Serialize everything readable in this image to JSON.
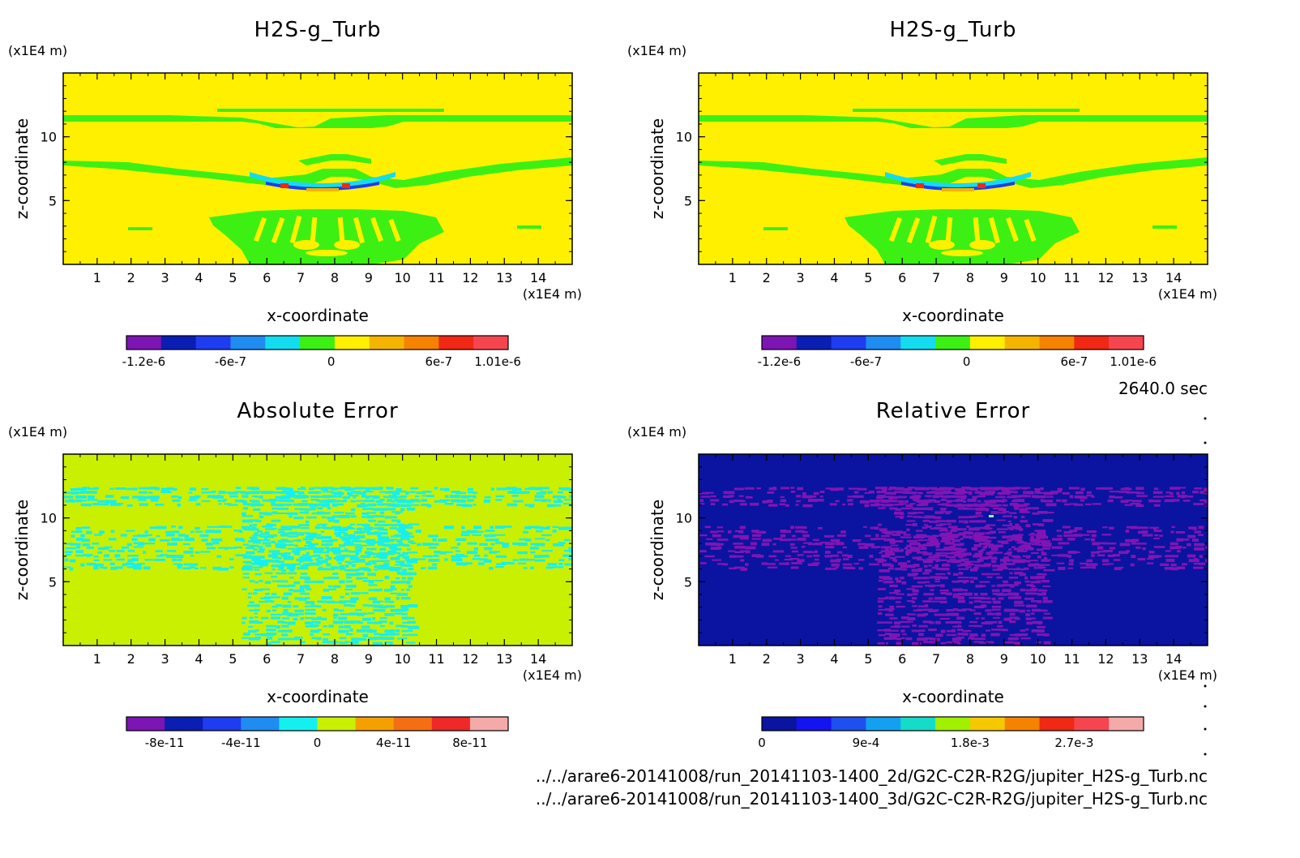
{
  "time_label": "2640.0 sec",
  "file_paths": [
    "../../arare6-20141008/run_20141103-1400_2d/G2C-C2R-R2G/jupiter_H2S-g_Turb.nc",
    "../../arare6-20141008/run_20141103-1400_3d/G2C-C2R-R2G/jupiter_H2S-g_Turb.nc"
  ],
  "chart_data": [
    {
      "type": "heatmap",
      "title": "H2S-g_Turb",
      "xlabel": "x-coordinate",
      "ylabel": "z-coordinate",
      "x_unit": "(x1E4 m)",
      "y_unit": "(x1E4 m)",
      "xlim": [
        0,
        15
      ],
      "ylim": [
        0,
        15
      ],
      "x_ticks": [
        "1",
        "2",
        "3",
        "4",
        "5",
        "6",
        "7",
        "8",
        "9",
        "10",
        "11",
        "12",
        "13",
        "14"
      ],
      "y_ticks": [
        "10",
        "5"
      ],
      "background_level": "0 to 3e-7",
      "colorbar": {
        "colors": [
          "#7d14b4",
          "#0a1eb4",
          "#1e3cf0",
          "#1e8cf0",
          "#14dcf0",
          "#3cf014",
          "#fff000",
          "#f5b400",
          "#f58200",
          "#f02814",
          "#f54650"
        ],
        "labels": [
          "-1.2e-6",
          "-6e-7",
          "0",
          "6e-7",
          "1.01e-6"
        ]
      }
    },
    {
      "type": "heatmap",
      "title": "H2S-g_Turb",
      "xlabel": "x-coordinate",
      "ylabel": "z-coordinate",
      "x_unit": "(x1E4 m)",
      "y_unit": "(x1E4 m)",
      "xlim": [
        0,
        15
      ],
      "ylim": [
        0,
        15
      ],
      "x_ticks": [
        "1",
        "2",
        "3",
        "4",
        "5",
        "6",
        "7",
        "8",
        "9",
        "10",
        "11",
        "12",
        "13",
        "14"
      ],
      "y_ticks": [
        "10",
        "5"
      ],
      "background_level": "0 to 3e-7",
      "colorbar": {
        "colors": [
          "#7d14b4",
          "#0a1eb4",
          "#1e3cf0",
          "#1e8cf0",
          "#14dcf0",
          "#3cf014",
          "#fff000",
          "#f5b400",
          "#f58200",
          "#f02814",
          "#f54650"
        ],
        "labels": [
          "-1.2e-6",
          "-6e-7",
          "0",
          "6e-7",
          "1.01e-6"
        ]
      }
    },
    {
      "type": "heatmap",
      "title": "Absolute Error",
      "xlabel": "x-coordinate",
      "ylabel": "z-coordinate",
      "x_unit": "(x1E4 m)",
      "y_unit": "(x1E4 m)",
      "xlim": [
        0,
        15
      ],
      "ylim": [
        0,
        15
      ],
      "x_ticks": [
        "1",
        "2",
        "3",
        "4",
        "5",
        "6",
        "7",
        "8",
        "9",
        "10",
        "11",
        "12",
        "13",
        "14"
      ],
      "y_ticks": [
        "10",
        "5"
      ],
      "background_level": "0 to 2e-11",
      "colorbar": {
        "colors": [
          "#7d14b4",
          "#0a1eb4",
          "#1e3cf0",
          "#1e8cf0",
          "#14f0f0",
          "#c8f000",
          "#f5a000",
          "#f56e14",
          "#f02828",
          "#f5aaaa"
        ],
        "labels": [
          "-8e-11",
          "-4e-11",
          "0",
          "4e-11",
          "8e-11"
        ]
      }
    },
    {
      "type": "heatmap",
      "title": "Relative Error",
      "xlabel": "x-coordinate",
      "ylabel": "z-coordinate",
      "x_unit": "(x1E4 m)",
      "y_unit": "(x1E4 m)",
      "xlim": [
        0,
        15
      ],
      "ylim": [
        0,
        15
      ],
      "x_ticks": [
        "1",
        "2",
        "3",
        "4",
        "5",
        "6",
        "7",
        "8",
        "9",
        "10",
        "11",
        "12",
        "13",
        "14"
      ],
      "y_ticks": [
        "10",
        "5"
      ],
      "background_level": "0 to 3e-4",
      "colorbar": {
        "colors": [
          "#0a14a0",
          "#1414f0",
          "#1e50f0",
          "#14a0f0",
          "#14dcc8",
          "#a0f000",
          "#f5c800",
          "#f58200",
          "#f02814",
          "#f54650",
          "#f5aaaa"
        ],
        "labels": [
          "0",
          "9e-4",
          "1.8e-3",
          "2.7e-3"
        ]
      }
    }
  ]
}
